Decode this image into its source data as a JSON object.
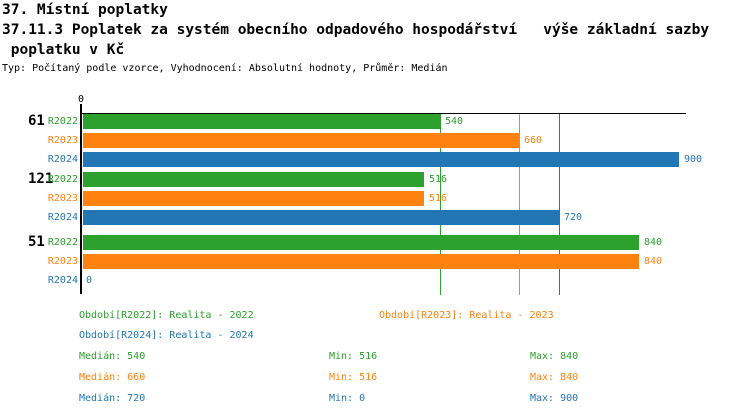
{
  "header": {
    "title_line1": "37. Místní poplatky",
    "title_line2": "37.11.3 Poplatek za systém obecního odpadového hospodářství   výše základní sazby",
    "title_line3": " poplatku v Kč",
    "subtitle": "Typ: Počítaný podle vzorce, Vyhodnocení: Absolutní hodnoty, Průměr: Medián"
  },
  "colors": {
    "R2022": "#2da02d",
    "R2023": "#fd820f",
    "R2024": "#2376b4",
    "axis": "#000000"
  },
  "chart_data": {
    "type": "bar",
    "orientation": "horizontal",
    "value_axis": {
      "origin_tick_label": "0",
      "min": 0,
      "max_visible": 910
    },
    "series_names": [
      "R2022",
      "R2023",
      "R2024"
    ],
    "groups": [
      {
        "label": "61",
        "values": {
          "R2022": 540,
          "R2023": 660,
          "R2024": 900
        }
      },
      {
        "label": "121",
        "values": {
          "R2022": 516,
          "R2023": 516,
          "R2024": 720
        }
      },
      {
        "label": "51",
        "values": {
          "R2022": 840,
          "R2023": 840,
          "R2024": 0
        }
      }
    ],
    "median_gridlines": {
      "R2022": 540,
      "R2023": 660,
      "R2024": 720
    },
    "legend": [
      {
        "series": "R2022",
        "label": "Období[R2022]: Realita - 2022"
      },
      {
        "series": "R2023",
        "label": "Období[R2023]: Realita - 2023"
      },
      {
        "series": "R2024",
        "label": "Období[R2024]: Realita - 2024"
      }
    ],
    "stats": {
      "labels": {
        "median": "Medián",
        "min": "Min",
        "max": "Max"
      },
      "rows": [
        {
          "series": "R2022",
          "median": 540,
          "min": 516,
          "max": 840
        },
        {
          "series": "R2023",
          "median": 660,
          "min": 516,
          "max": 840
        },
        {
          "series": "R2024",
          "median": 720,
          "min": 0,
          "max": 900
        }
      ]
    }
  }
}
